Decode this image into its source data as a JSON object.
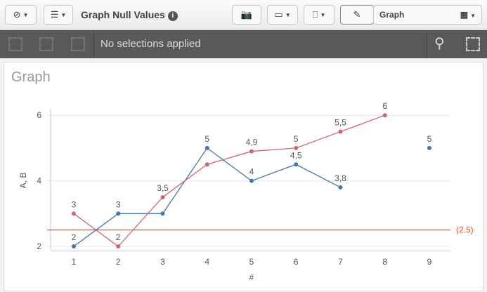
{
  "toolbar": {
    "app_title": "Graph Null Values",
    "info": "i",
    "sheet_name": "Graph"
  },
  "selections": {
    "text": "No selections applied"
  },
  "card": {
    "title": "Graph"
  },
  "chart_data": {
    "type": "line",
    "title": "Graph",
    "xlabel": "#",
    "ylabel": "A, B",
    "x": [
      1,
      2,
      3,
      4,
      5,
      6,
      7,
      8,
      9
    ],
    "yticks": [
      2,
      4,
      6
    ],
    "ylim": [
      1.9,
      6.2
    ],
    "series": [
      {
        "name": "A",
        "color": "#4477aa",
        "values": [
          2,
          3,
          3,
          5,
          4,
          4.5,
          3.8,
          null,
          5
        ],
        "labels": [
          "2",
          "3",
          "",
          "5",
          "4",
          "4,5",
          "3,8",
          "",
          "5"
        ]
      },
      {
        "name": "B",
        "color": "#cc6677",
        "values": [
          3,
          2,
          3.5,
          4.5,
          4.9,
          5,
          5.5,
          6,
          null
        ],
        "labels": [
          "3",
          "2",
          "3,5",
          "",
          "4,9",
          "5",
          "5,5",
          "6",
          ""
        ]
      }
    ],
    "reference_line": {
      "value": 2.5,
      "label": "(2.5)",
      "color": "#f04e23"
    }
  }
}
